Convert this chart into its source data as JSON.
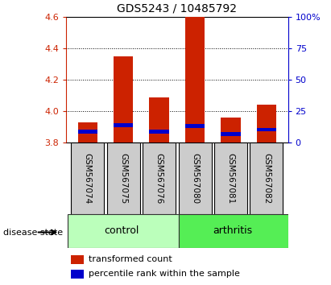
{
  "title": "GDS5243 / 10485792",
  "samples": [
    "GSM567074",
    "GSM567075",
    "GSM567076",
    "GSM567080",
    "GSM567081",
    "GSM567082"
  ],
  "groups": [
    "control",
    "control",
    "control",
    "arthritis",
    "arthritis",
    "arthritis"
  ],
  "red_tops": [
    3.93,
    4.35,
    4.09,
    4.6,
    3.96,
    4.04
  ],
  "blue_bottoms": [
    3.855,
    3.9,
    3.855,
    3.895,
    3.84,
    3.87
  ],
  "blue_heights": [
    0.025,
    0.025,
    0.025,
    0.025,
    0.025,
    0.025
  ],
  "ymin": 3.8,
  "ymax": 4.6,
  "yticks_left": [
    3.8,
    4.0,
    4.2,
    4.4,
    4.6
  ],
  "yticks_right": [
    0,
    25,
    50,
    75,
    100
  ],
  "bar_width": 0.55,
  "red_color": "#cc2200",
  "blue_color": "#0000cc",
  "control_color": "#bbffbb",
  "arthritis_color": "#55ee55",
  "label_bg_color": "#cccccc",
  "legend_red_label": "transformed count",
  "legend_blue_label": "percentile rank within the sample",
  "group_label": "disease state"
}
